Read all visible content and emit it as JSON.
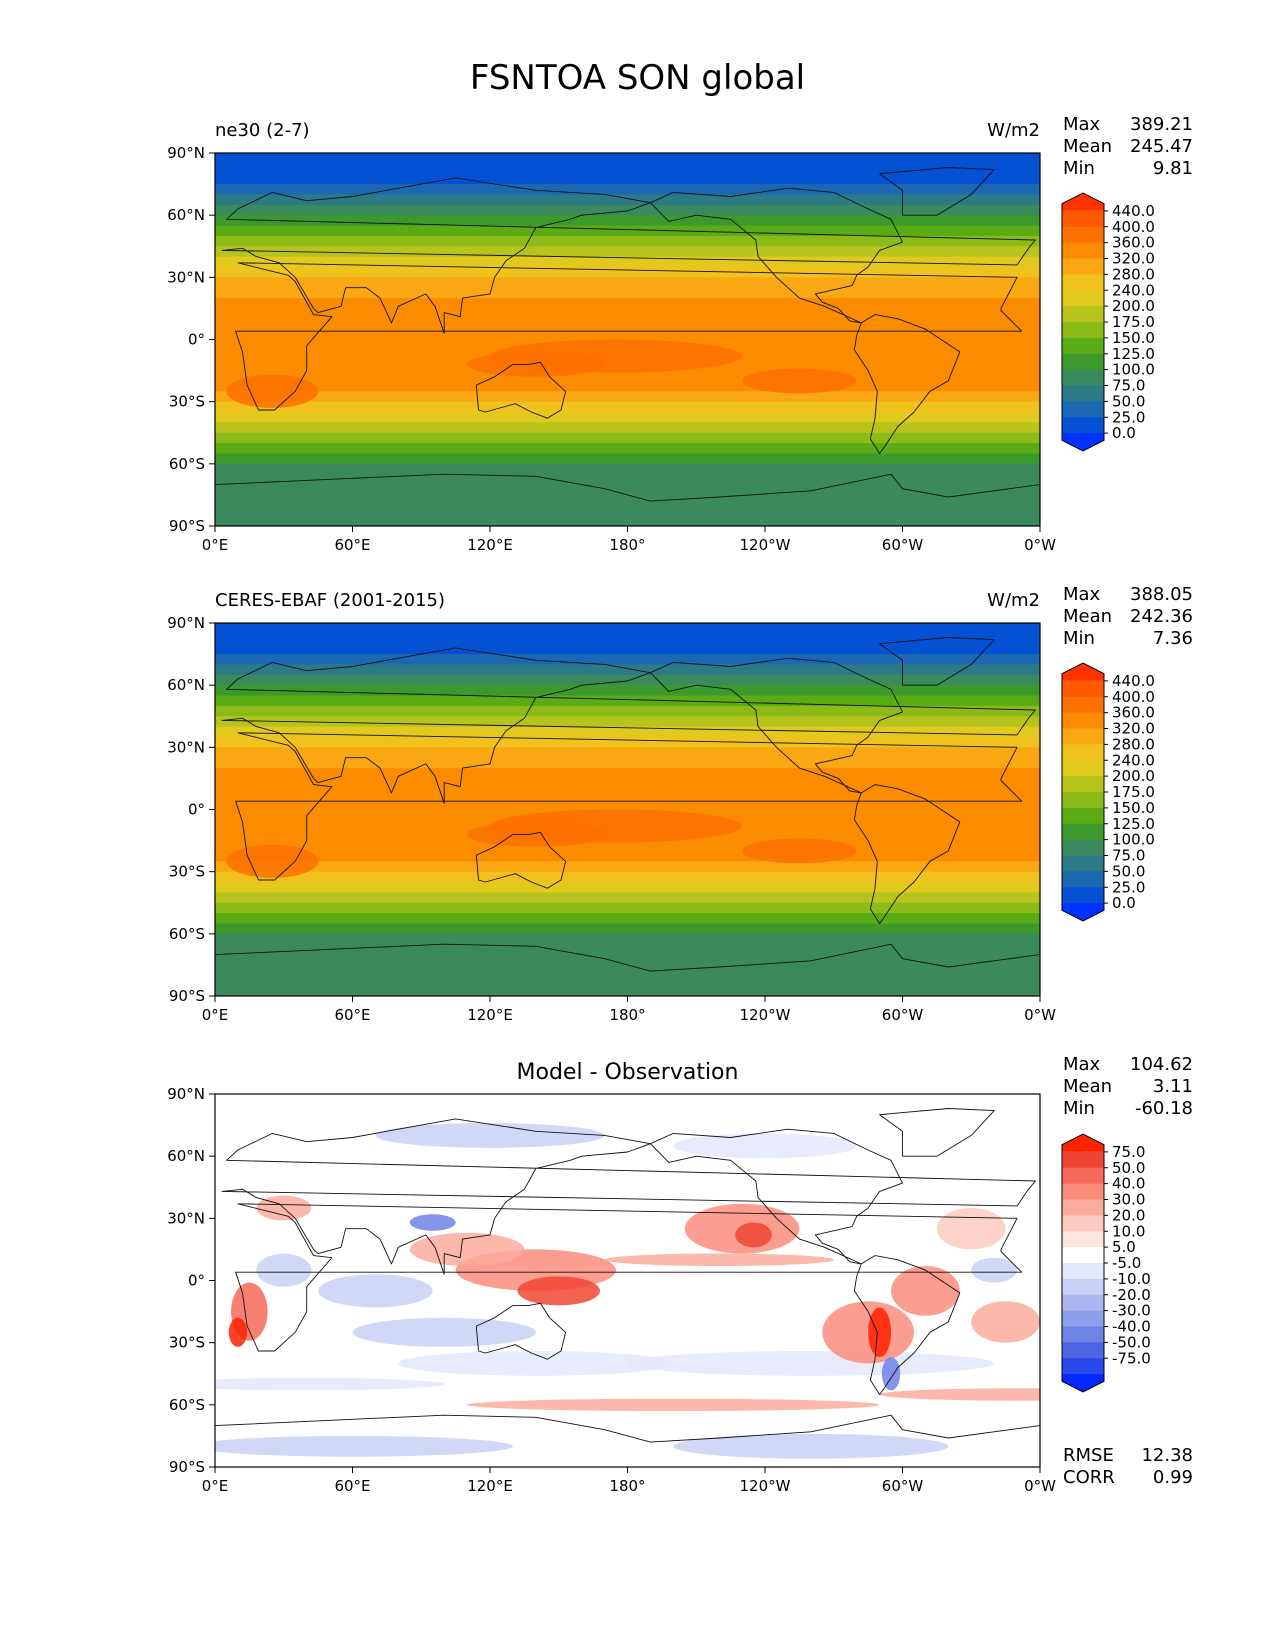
{
  "title": "FSNTOA SON global",
  "lat_ticks": [
    "90°N",
    "60°N",
    "30°N",
    "0°",
    "30°S",
    "60°S",
    "90°S"
  ],
  "lon_ticks": [
    "0°E",
    "60°E",
    "120°E",
    "180°",
    "120°W",
    "60°W",
    "0°W"
  ],
  "panels": [
    {
      "name": "ne30 (2-7)",
      "units": "W/m2",
      "stats": {
        "max_label": "Max",
        "max": "389.21",
        "mean_label": "Mean",
        "mean": "245.47",
        "min_label": "Min",
        "min": "9.81"
      },
      "colorbar_labels": [
        "440.0",
        "400.0",
        "360.0",
        "320.0",
        "280.0",
        "240.0",
        "200.0",
        "175.0",
        "150.0",
        "125.0",
        "100.0",
        "75.0",
        "50.0",
        "25.0",
        "0.0"
      ]
    },
    {
      "name": "CERES-EBAF (2001-2015)",
      "units": "W/m2",
      "stats": {
        "max_label": "Max",
        "max": "388.05",
        "mean_label": "Mean",
        "mean": "242.36",
        "min_label": "Min",
        "min": "7.36"
      },
      "colorbar_labels": [
        "440.0",
        "400.0",
        "360.0",
        "320.0",
        "280.0",
        "240.0",
        "200.0",
        "175.0",
        "150.0",
        "125.0",
        "100.0",
        "75.0",
        "50.0",
        "25.0",
        "0.0"
      ]
    },
    {
      "name": "Model - Observation",
      "stats": {
        "max_label": "Max",
        "max": "104.62",
        "mean_label": "Mean",
        "mean": "3.11",
        "min_label": "Min",
        "min": "-60.18"
      },
      "colorbar_labels": [
        "75.0",
        "50.0",
        "40.0",
        "30.0",
        "20.0",
        "10.0",
        "5.0",
        "-5.0",
        "-10.0",
        "-20.0",
        "-30.0",
        "-40.0",
        "-50.0",
        "-75.0"
      ],
      "metrics": {
        "rmse_label": "RMSE",
        "rmse": "12.38",
        "corr_label": "CORR",
        "corr": "0.99"
      }
    }
  ],
  "colors": {
    "abs": [
      "#ff3300",
      "#ff5a00",
      "#fc7100",
      "#fb8c00",
      "#f9a814",
      "#f1c21d",
      "#e2c91d",
      "#b7c41b",
      "#8cbb18",
      "#5aab14",
      "#3c9a2c",
      "#3a8a5e",
      "#2c7a86",
      "#1d68b2",
      "#0551d4",
      "#0033ff"
    ],
    "diff": [
      "#ff2200",
      "#ef4633",
      "#f66a5a",
      "#fa8c7c",
      "#fbab9c",
      "#fdcbbf",
      "#fee6df",
      "#ffffff",
      "#e4e8fb",
      "#c9d1f6",
      "#aab8f1",
      "#8ea0ec",
      "#6e83e6",
      "#4c66e3",
      "#2a48ea",
      "#0028ff"
    ]
  }
}
